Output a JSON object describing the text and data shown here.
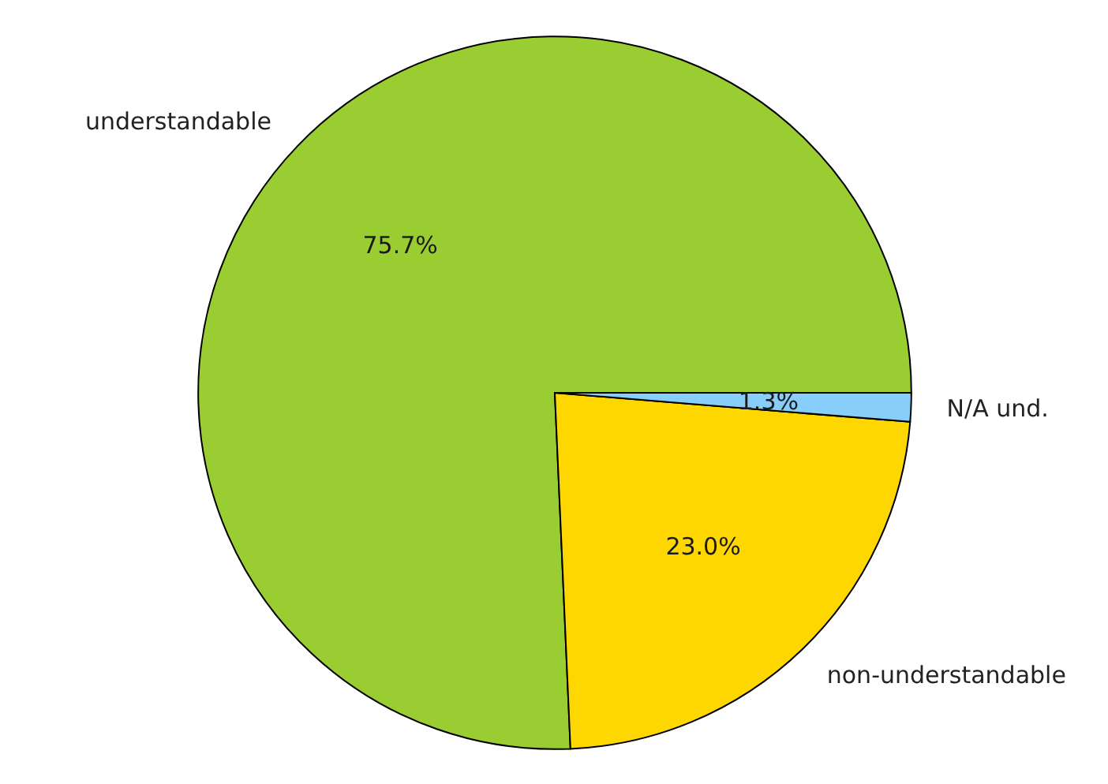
{
  "chart_data": {
    "type": "pie",
    "categories": [
      "understandable",
      "non-understandable",
      "N/A und."
    ],
    "values": [
      75.7,
      23.0,
      1.3
    ],
    "colors": [
      "#9acd32",
      "#ffd700",
      "#87cefa"
    ],
    "value_labels": [
      "75.7%",
      "23.0%",
      "1.3%"
    ]
  }
}
